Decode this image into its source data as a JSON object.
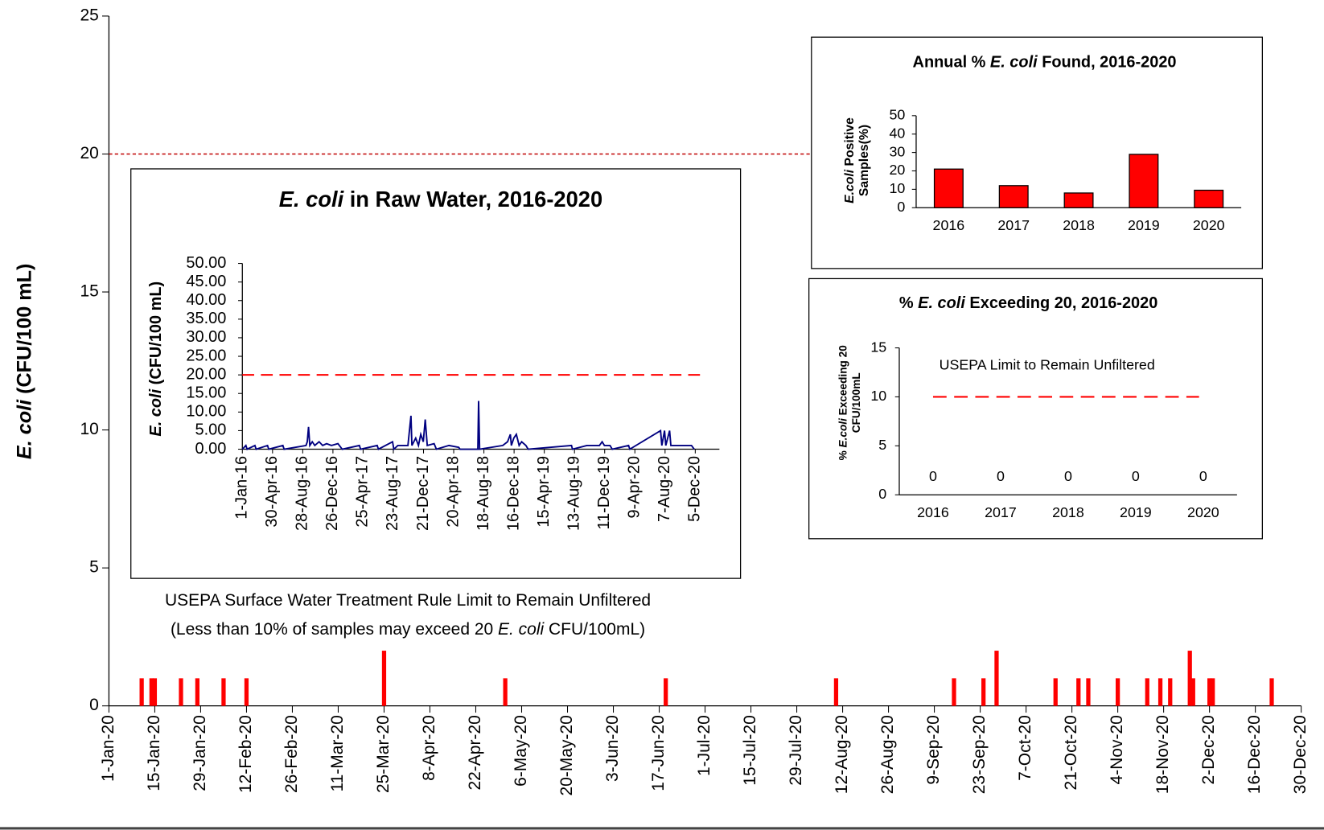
{
  "chart_data": [
    {
      "type": "bar",
      "y_label": [
        "E. coli",
        " (CFU/100 mL)"
      ],
      "annotation": "USEPA Surface Water Treatment Rule Limit to Remain Unfiltered",
      "annotation_2": [
        "(Less than 10% of samples may exceed 20 ",
        "E. coli",
        " CFU/100mL)"
      ],
      "x": [
        "11-Jan-20",
        "14-Jan-20",
        "15-Jan-20",
        "23-Jan-20",
        "28-Jan-20",
        "5-Feb-20",
        "12-Feb-20",
        "25-Mar-20",
        "1-May-20",
        "19-Jun-20",
        "10-Aug-20",
        "15-Sep-20",
        "24-Sep-20",
        "28-Sep-20",
        "16-Oct-20",
        "23-Oct-20",
        "26-Oct-20",
        "4-Nov-20",
        "13-Nov-20",
        "17-Nov-20",
        "20-Nov-20",
        "26-Nov-20",
        "27-Nov-20",
        "2-Dec-20",
        "3-Dec-20",
        "21-Dec-20"
      ],
      "values": [
        1,
        1,
        1,
        1,
        1,
        1,
        1,
        2,
        1,
        1,
        1,
        1,
        1,
        2,
        1,
        1,
        1,
        1,
        1,
        1,
        1,
        2,
        1,
        1,
        1,
        1
      ],
      "color": "#ff0000",
      "xlim": [
        "1-Jan-20",
        "30-Dec-20"
      ],
      "xticks": [
        "1-Jan-20",
        "15-Jan-20",
        "29-Jan-20",
        "12-Feb-20",
        "26-Feb-20",
        "11-Mar-20",
        "25-Mar-20",
        "8-Apr-20",
        "22-Apr-20",
        "6-May-20",
        "20-May-20",
        "3-Jun-20",
        "17-Jun-20",
        "1-Jul-20",
        "15-Jul-20",
        "29-Jul-20",
        "12-Aug-20",
        "26-Aug-20",
        "9-Sep-20",
        "23-Sep-20",
        "7-Oct-20",
        "21-Oct-20",
        "4-Nov-20",
        "18-Nov-20",
        "2-Dec-20",
        "16-Dec-20",
        "30-Dec-20"
      ],
      "ylim": [
        0,
        25
      ],
      "yticks": [
        0,
        5,
        10,
        15,
        20,
        25
      ],
      "reference_line": 20,
      "reference_color": "#c00000"
    },
    {
      "type": "line",
      "title": [
        "E. coli",
        " in Raw Water, 2016-2020"
      ],
      "y_label": [
        "E. coli",
        " (CFU/100 mL)"
      ],
      "x": [
        "1-Jan-16",
        "15-Jan-16",
        "20-Jan-16",
        "20-Feb-16",
        "25-Feb-16",
        "10-Apr-16",
        "15-Apr-16",
        "10-Jun-16",
        "15-Jun-16",
        "10-Sep-16",
        "15-Sep-16",
        "20-Sep-16",
        "25-Sep-16",
        "5-Oct-16",
        "15-Oct-16",
        "1-Nov-16",
        "15-Nov-16",
        "1-Dec-16",
        "20-Dec-16",
        "15-Jan-17",
        "1-Feb-17",
        "10-Apr-17",
        "15-Apr-17",
        "20-Jun-17",
        "25-Jun-17",
        "20-Aug-17",
        "25-Aug-17",
        "10-Sep-17",
        "20-Oct-17",
        "1-Nov-17",
        "5-Nov-17",
        "20-Nov-17",
        "1-Dec-17",
        "10-Dec-17",
        "20-Dec-17",
        "28-Dec-17",
        "5-Jan-18",
        "1-Feb-18",
        "10-Feb-18",
        "1-Apr-18",
        "10-May-18",
        "15-May-18",
        "25-Jul-18",
        "28-Jul-18",
        "1-Aug-18",
        "1-Nov-18",
        "20-Nov-18",
        "1-Dec-18",
        "5-Dec-18",
        "15-Dec-18",
        "25-Dec-18",
        "5-Jan-19",
        "15-Jan-19",
        "1-Feb-19",
        "10-Feb-19",
        "1-Aug-19",
        "5-Aug-19",
        "1-Oct-19",
        "15-Oct-19",
        "1-Nov-19",
        "20-Nov-19",
        "1-Dec-19",
        "10-Dec-19",
        "1-Jan-20",
        "10-Jan-20",
        "15-Mar-20",
        "20-Mar-20",
        "20-Jul-20",
        "25-Jul-20",
        "5-Aug-20",
        "10-Aug-20",
        "25-Aug-20",
        "30-Aug-20",
        "1-Oct-20",
        "1-Nov-20",
        "20-Nov-20",
        "1-Dec-20"
      ],
      "values": [
        0,
        1,
        0,
        1,
        0,
        1,
        0,
        1,
        0,
        1,
        2,
        6,
        1,
        2,
        1,
        2,
        1,
        1.5,
        1,
        1.5,
        0,
        1,
        0,
        1,
        0,
        2,
        0,
        1,
        1,
        9,
        1,
        3,
        1,
        4,
        2,
        8,
        1,
        1.5,
        0,
        1,
        0.5,
        0,
        0,
        13,
        0,
        1,
        2,
        4,
        1,
        3,
        4,
        1,
        2,
        1,
        0,
        1,
        0,
        1,
        1,
        1,
        1,
        2,
        1,
        1,
        0,
        1,
        0,
        5,
        1,
        5,
        1,
        5,
        1,
        1,
        1,
        1,
        0
      ],
      "color": "#000080",
      "xlim": [
        "1-Jan-16",
        "11-Mar-21"
      ],
      "xticks": [
        "1-Jan-16",
        "30-Apr-16",
        "28-Aug-16",
        "26-Dec-16",
        "25-Apr-17",
        "23-Aug-17",
        "21-Dec-17",
        "20-Apr-18",
        "18-Aug-18",
        "16-Dec-18",
        "15-Apr-19",
        "13-Aug-19",
        "11-Dec-19",
        "9-Apr-20",
        "7-Aug-20",
        "5-Dec-20"
      ],
      "ylim": [
        0,
        50
      ],
      "yticks": [
        {
          "value": 0,
          "label": "0.00"
        },
        {
          "value": 5,
          "label": "5.00"
        },
        {
          "value": 10,
          "label": "10.00"
        },
        {
          "value": 15,
          "label": "15.00"
        },
        {
          "value": 20,
          "label": "20.00"
        },
        {
          "value": 25,
          "label": "25.00"
        },
        {
          "value": 30,
          "label": "30.00"
        },
        {
          "value": 35,
          "label": "35.00"
        },
        {
          "value": 40,
          "label": "40.00"
        },
        {
          "value": 45,
          "label": "45.00"
        },
        {
          "value": 50,
          "label": "50.00"
        }
      ],
      "reference_line": 20,
      "reference_color": "#ff0000"
    },
    {
      "type": "bar",
      "title": [
        "Annual % ",
        "E. coli",
        " Found, 2016-2020"
      ],
      "y_label": [
        "E.coli",
        "  Positive",
        "Samples(%)"
      ],
      "categories": [
        "2016",
        "2017",
        "2018",
        "2019",
        "2020"
      ],
      "values": [
        21,
        12,
        8,
        29,
        9.5
      ],
      "color": "#ff0000",
      "ylim": [
        0,
        50
      ],
      "yticks": [
        0,
        10,
        20,
        30,
        40,
        50
      ]
    },
    {
      "type": "bar",
      "title": [
        "% ",
        "E. coli",
        " Exceeding 20, 2016-2020"
      ],
      "y_label": [
        "% ",
        "E.coli",
        " Exceeding 20",
        "CFU/100mL"
      ],
      "annotation": "USEPA Limit to Remain  Unfiltered",
      "categories": [
        "2016",
        "2017",
        "2018",
        "2019",
        "2020"
      ],
      "values": [
        0,
        0,
        0,
        0,
        0
      ],
      "value_labels": [
        "0",
        "0",
        "0",
        "0",
        "0"
      ],
      "color": "#ff0000",
      "ylim": [
        0,
        15
      ],
      "yticks": [
        0,
        5,
        10,
        15
      ],
      "reference_line": 10,
      "reference_color": "#ff0000"
    }
  ]
}
